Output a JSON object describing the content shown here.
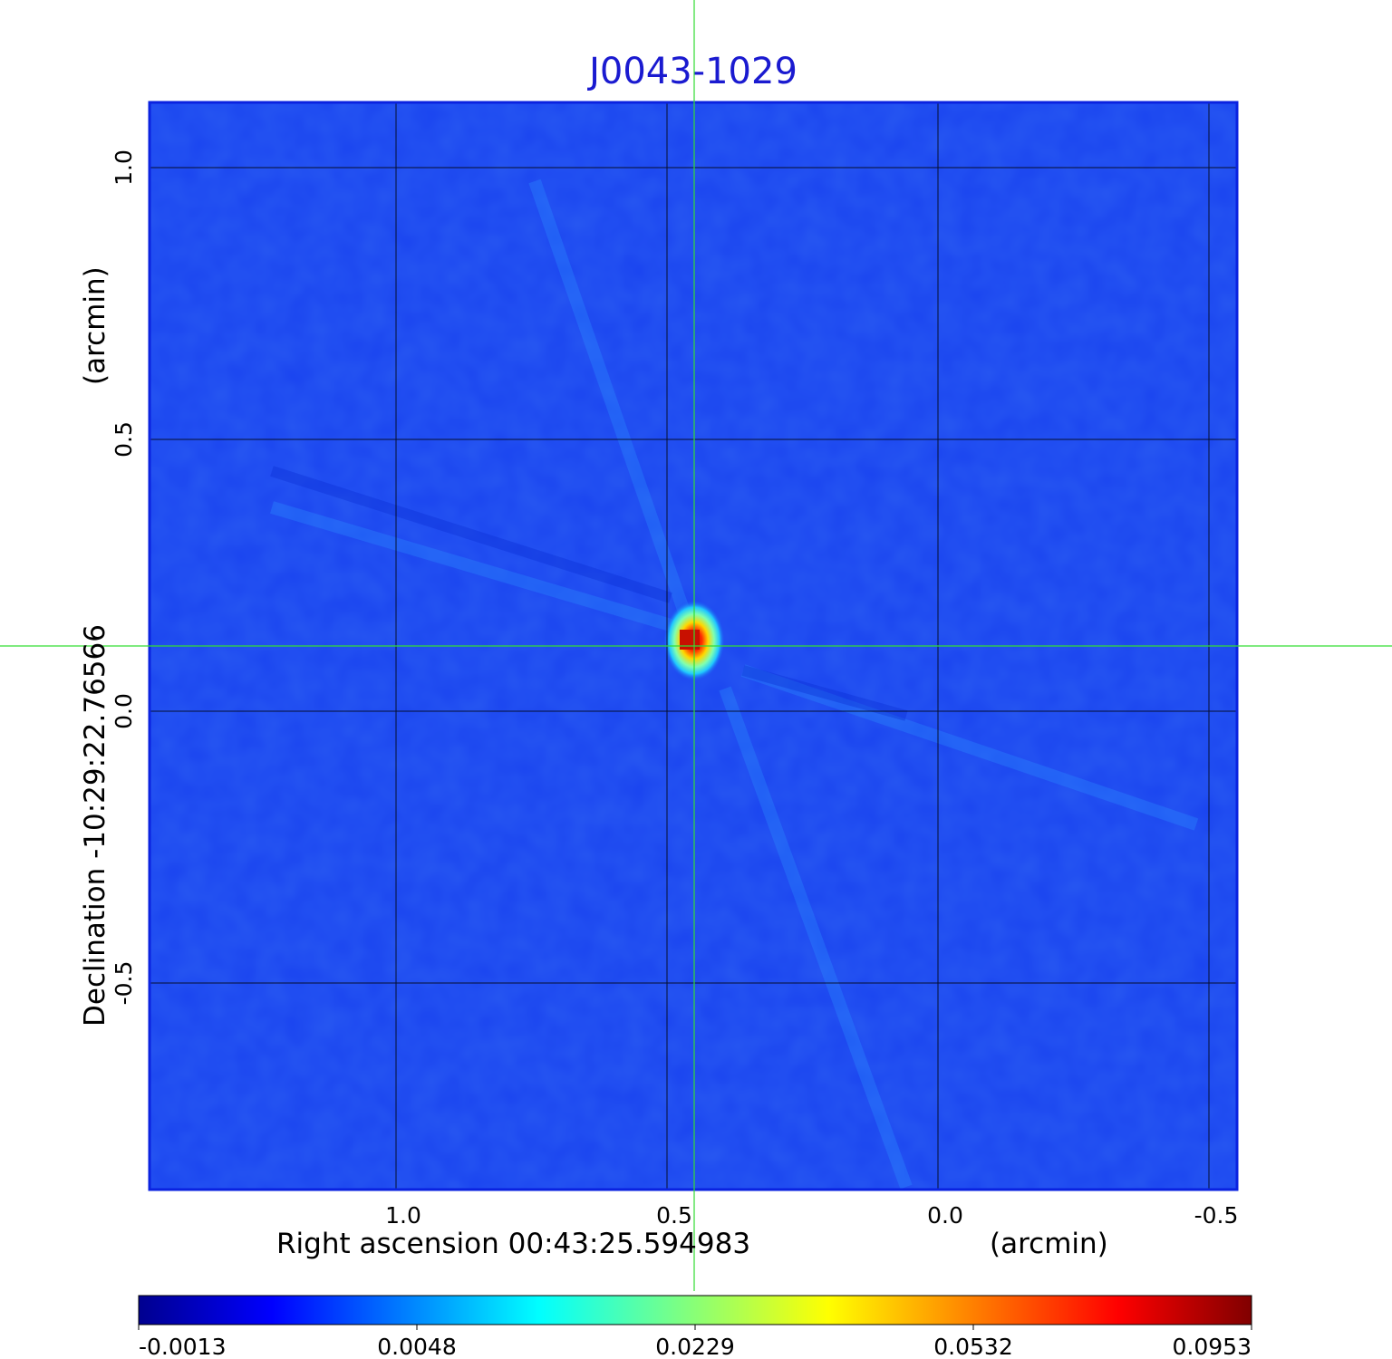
{
  "title": "J0043-1029",
  "colors": {
    "title": "#1a1ad0",
    "background_map": "#1a44f0",
    "crosshair": "#33dd33",
    "grid": "#000000"
  },
  "x_axis": {
    "label": "Right ascension  00:43:25.594983",
    "unit": "(arcmin)",
    "ticks": [
      "1.0",
      "0.5",
      "0.0",
      "-0.5"
    ],
    "tick_values": [
      1.0,
      0.5,
      0.0,
      -0.5
    ]
  },
  "y_axis": {
    "label": "Declination  -10:29:22.76566",
    "unit": "(arcmin)",
    "ticks": [
      "1.0",
      "0.5",
      "0.0",
      "-0.5"
    ],
    "tick_values": [
      1.0,
      0.5,
      0.0,
      -0.5
    ]
  },
  "colorbar": {
    "colormap": "jet",
    "ticks": [
      "-0.0013",
      "0.0048",
      "0.0229",
      "0.0532",
      "0.0953"
    ]
  }
}
